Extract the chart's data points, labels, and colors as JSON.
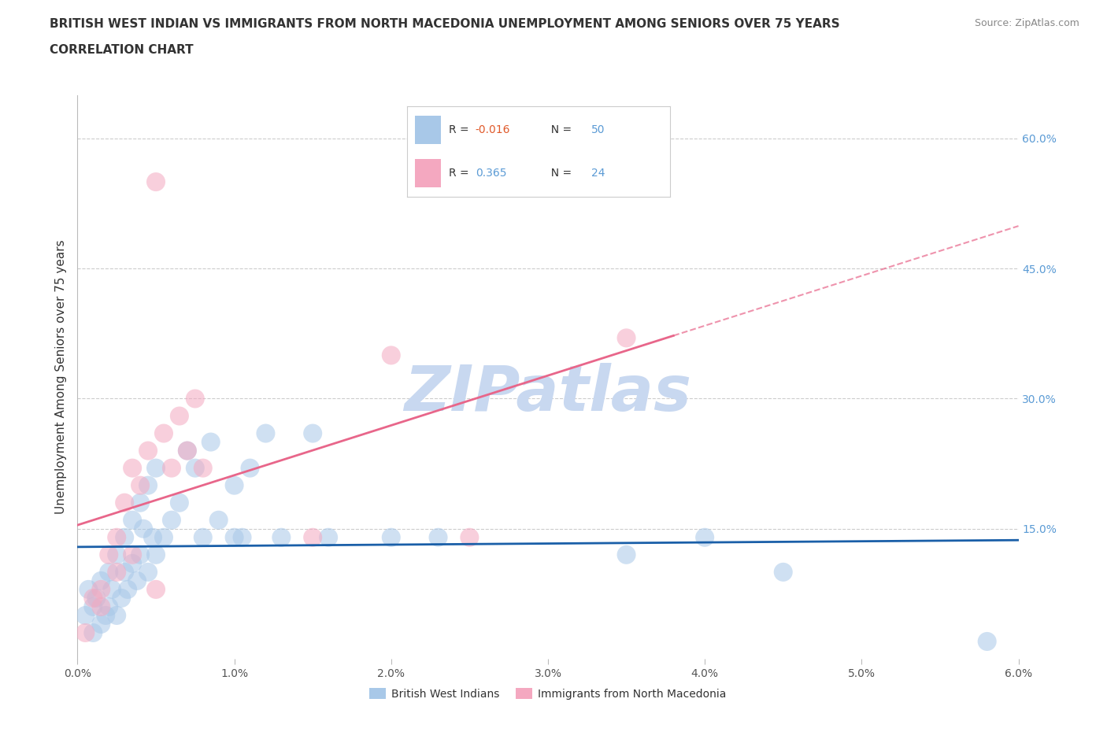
{
  "title_line1": "BRITISH WEST INDIAN VS IMMIGRANTS FROM NORTH MACEDONIA UNEMPLOYMENT AMONG SENIORS OVER 75 YEARS",
  "title_line2": "CORRELATION CHART",
  "source": "Source: ZipAtlas.com",
  "ylabel": "Unemployment Among Seniors over 75 years",
  "legend_label1": "British West Indians",
  "legend_label2": "Immigrants from North Macedonia",
  "R1": -0.016,
  "N1": 50,
  "R2": 0.365,
  "N2": 24,
  "R1_color": "#E05A2B",
  "R2_color": "#5B9BD5",
  "N_color": "#5B9BD5",
  "xlim": [
    0.0,
    6.0
  ],
  "ylim": [
    0.0,
    65.0
  ],
  "xticks": [
    0.0,
    1.0,
    2.0,
    3.0,
    4.0,
    5.0,
    6.0
  ],
  "xtick_labels": [
    "0.0%",
    "1.0%",
    "2.0%",
    "3.0%",
    "4.0%",
    "5.0%",
    "6.0%"
  ],
  "yticks_right": [
    15.0,
    30.0,
    45.0,
    60.0
  ],
  "ytick_right_labels": [
    "15.0%",
    "30.0%",
    "45.0%",
    "60.0%"
  ],
  "color_blue": "#A8C8E8",
  "color_pink": "#F4A8C0",
  "trend_blue": "#1A5FA8",
  "trend_pink": "#E8668A",
  "watermark": "ZIPatlas",
  "watermark_color": "#C8D8F0",
  "blue_scatter_x": [
    0.05,
    0.07,
    0.1,
    0.1,
    0.12,
    0.15,
    0.15,
    0.18,
    0.2,
    0.2,
    0.22,
    0.25,
    0.25,
    0.28,
    0.3,
    0.3,
    0.32,
    0.35,
    0.35,
    0.38,
    0.4,
    0.4,
    0.42,
    0.45,
    0.45,
    0.48,
    0.5,
    0.5,
    0.55,
    0.6,
    0.65,
    0.7,
    0.75,
    0.8,
    0.85,
    0.9,
    1.0,
    1.0,
    1.05,
    1.1,
    1.2,
    1.3,
    1.5,
    1.6,
    2.0,
    2.3,
    3.5,
    4.0,
    4.5,
    5.8
  ],
  "blue_scatter_y": [
    5.0,
    8.0,
    3.0,
    6.0,
    7.0,
    4.0,
    9.0,
    5.0,
    6.0,
    10.0,
    8.0,
    5.0,
    12.0,
    7.0,
    10.0,
    14.0,
    8.0,
    11.0,
    16.0,
    9.0,
    12.0,
    18.0,
    15.0,
    10.0,
    20.0,
    14.0,
    12.0,
    22.0,
    14.0,
    16.0,
    18.0,
    24.0,
    22.0,
    14.0,
    25.0,
    16.0,
    14.0,
    20.0,
    14.0,
    22.0,
    26.0,
    14.0,
    26.0,
    14.0,
    14.0,
    14.0,
    12.0,
    14.0,
    10.0,
    2.0
  ],
  "pink_scatter_x": [
    0.05,
    0.1,
    0.15,
    0.2,
    0.25,
    0.3,
    0.35,
    0.4,
    0.45,
    0.5,
    0.55,
    0.6,
    0.65,
    0.7,
    0.75,
    0.8,
    1.5,
    2.0,
    2.5,
    3.5,
    0.15,
    0.25,
    0.35,
    0.5
  ],
  "pink_scatter_y": [
    3.0,
    7.0,
    8.0,
    12.0,
    14.0,
    18.0,
    22.0,
    20.0,
    24.0,
    55.0,
    26.0,
    22.0,
    28.0,
    24.0,
    30.0,
    22.0,
    14.0,
    35.0,
    14.0,
    37.0,
    6.0,
    10.0,
    12.0,
    8.0
  ],
  "title_fontsize": 11,
  "source_fontsize": 9,
  "axis_label_fontsize": 11,
  "tick_fontsize": 10,
  "right_tick_color": "#5B9BD5"
}
